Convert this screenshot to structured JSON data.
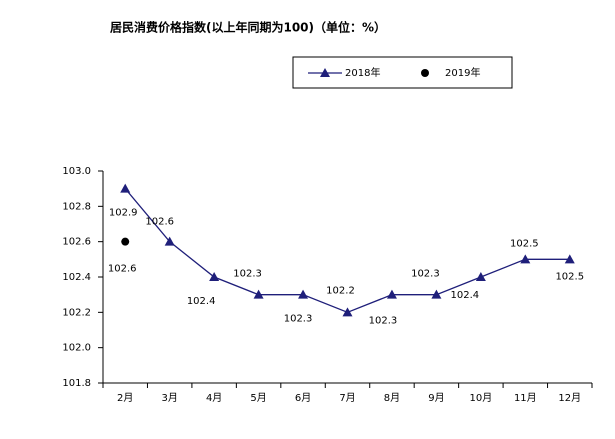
{
  "chart_data": {
    "type": "line",
    "title": "居民消费价格指数(以上年同期为100)（单位：%）",
    "categories": [
      "2月",
      "3月",
      "4月",
      "5月",
      "6月",
      "7月",
      "8月",
      "9月",
      "10月",
      "11月",
      "12月"
    ],
    "series": [
      {
        "name": "2018年",
        "color": "#1f1f7a",
        "values": [
          102.9,
          102.6,
          102.4,
          102.3,
          102.3,
          102.2,
          102.3,
          102.3,
          102.4,
          102.5,
          102.5
        ]
      },
      {
        "name": "2019年",
        "color": "#000000",
        "values": [
          102.6,
          null,
          null,
          null,
          null,
          null,
          null,
          null,
          null,
          null,
          null
        ]
      }
    ],
    "ylim": [
      101.8,
      103.0
    ],
    "yticks": [
      101.8,
      {
        "value": 102,
        "label": "102.0"
      },
      102.2,
      102.4,
      102.6,
      102.8,
      {
        "value": 103,
        "label": "103.0"
      }
    ],
    "grid": false,
    "legend": "top"
  }
}
